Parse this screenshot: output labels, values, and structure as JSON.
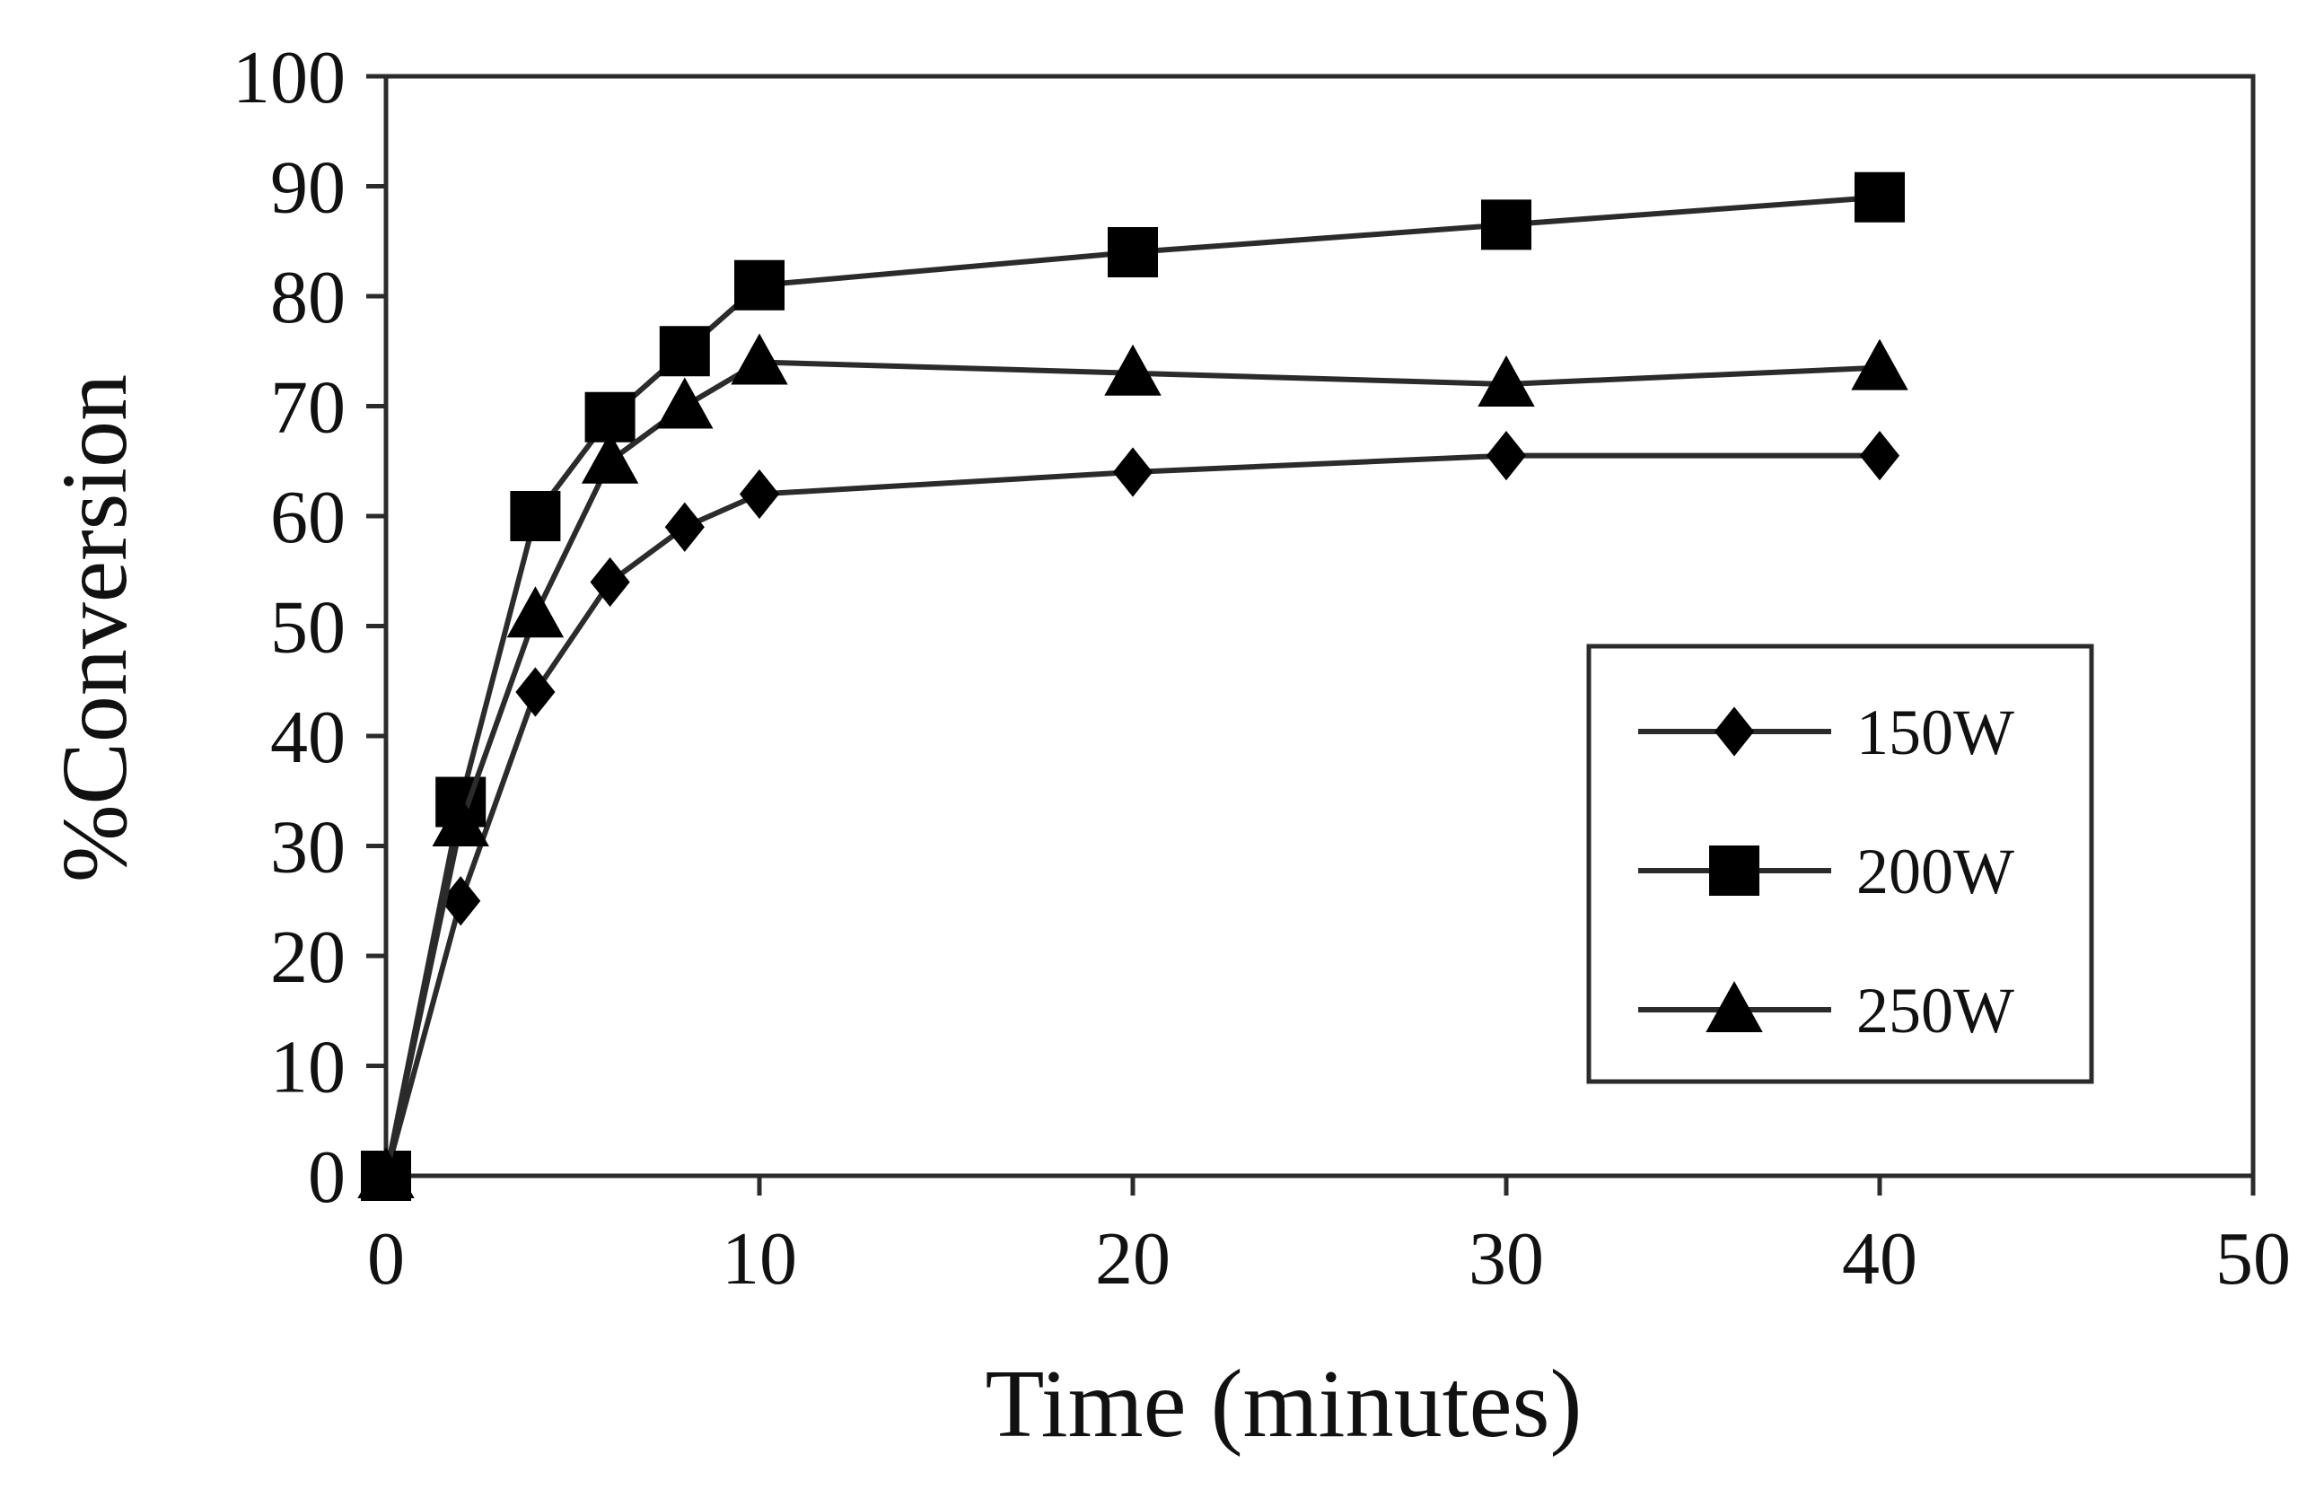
{
  "chart_data": {
    "type": "line",
    "title": "",
    "xlabel": "Time (minutes)",
    "ylabel": "%Conversion",
    "xlim": [
      0,
      50
    ],
    "ylim": [
      0,
      100
    ],
    "x_ticks": [
      0,
      10,
      20,
      30,
      40,
      50
    ],
    "y_ticks": [
      0,
      10,
      20,
      30,
      40,
      50,
      60,
      70,
      80,
      90,
      100
    ],
    "x_tick_labels": [
      "0",
      "10",
      "20",
      "30",
      "40",
      "50"
    ],
    "y_tick_labels": [
      "0",
      "10",
      "20",
      "30",
      "40",
      "50",
      "60",
      "70",
      "80",
      "90",
      "100"
    ],
    "grid": false,
    "legend_position": "right",
    "series": [
      {
        "name": "150W",
        "marker": "diamond",
        "x": [
          0,
          2,
          4,
          6,
          8,
          10,
          20,
          30,
          40
        ],
        "y": [
          0,
          25,
          44,
          54,
          59,
          62,
          64,
          65.5,
          65.5
        ]
      },
      {
        "name": "200W",
        "marker": "square",
        "x": [
          0,
          2,
          4,
          6,
          8,
          10,
          20,
          30,
          40
        ],
        "y": [
          0,
          34,
          60,
          69,
          75,
          81,
          84,
          86.5,
          89
        ]
      },
      {
        "name": "250W",
        "marker": "triangle",
        "x": [
          0,
          2,
          4,
          6,
          8,
          10,
          20,
          30,
          40
        ],
        "y": [
          0,
          32,
          51,
          65,
          70,
          74,
          73,
          72,
          73.5
        ]
      }
    ]
  }
}
